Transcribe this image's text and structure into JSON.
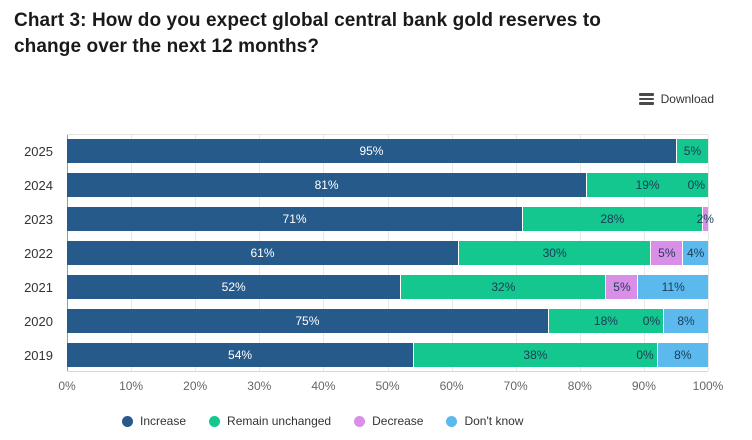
{
  "title": {
    "line1": "Chart 3: How do you expect global central bank gold reserves to",
    "line2": "change over the next 12 months?"
  },
  "toolbar": {
    "download_label": "Download"
  },
  "chart_data": {
    "type": "bar",
    "variant": "horizontal-stacked",
    "title": "Chart 3: How do you expect global central bank gold reserves to change over the next 12 months?",
    "categories": [
      "2025",
      "2024",
      "2023",
      "2022",
      "2021",
      "2020",
      "2019"
    ],
    "series": [
      {
        "name": "Increase",
        "color": "#255A8B",
        "values": [
          95,
          81,
          71,
          61,
          52,
          75,
          54
        ]
      },
      {
        "name": "Remain unchanged",
        "color": "#14C78E",
        "values": [
          5,
          19,
          28,
          30,
          32,
          18,
          38
        ]
      },
      {
        "name": "Decrease",
        "color": "#D98FE8",
        "values": [
          null,
          0,
          2,
          5,
          5,
          0,
          0
        ]
      },
      {
        "name": "Don't know",
        "color": "#5BB9ED",
        "values": [
          null,
          null,
          null,
          4,
          11,
          8,
          8
        ]
      }
    ],
    "value_suffix": "%",
    "xlim": [
      0,
      100
    ],
    "x_ticks": [
      "0%",
      "10%",
      "20%",
      "30%",
      "40%",
      "50%",
      "60%",
      "70%",
      "80%",
      "90%",
      "100%"
    ],
    "legend": [
      "Increase",
      "Remain unchanged",
      "Decrease",
      "Don't know"
    ],
    "legend_position": "bottom",
    "grid": true
  },
  "colors": {
    "bar_label_light": "#FFFFFF",
    "bar_label_dark": "#1E3A56",
    "axis_line": "#9A9A9A",
    "grid_line": "#E7E7E7",
    "tick_text": "#666666",
    "category_text": "#333333",
    "title_text": "#1A1A1A"
  }
}
